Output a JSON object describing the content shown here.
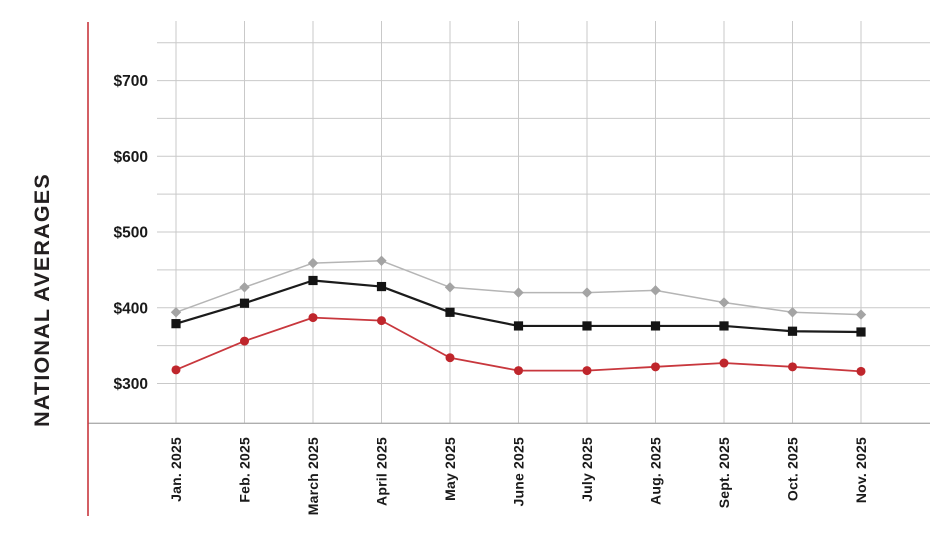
{
  "title": {
    "label": "NATIONAL AVERAGES"
  },
  "colors": {
    "background": "#ffffff",
    "gridline": "#c9c9c9",
    "bottom_axis": "#aeaeae",
    "red_axis": "#c8373d",
    "label_text": "#1a1a1a",
    "title_text": "#231f20"
  },
  "chart_data": {
    "type": "line",
    "title": "NATIONAL AVERAGES",
    "legend": "none",
    "grid": "on",
    "categories": [
      "Jan. 2025",
      "Feb. 2025",
      "March 2025",
      "April 2025",
      "May 2025",
      "June 2025",
      "July 2025",
      "Aug. 2025",
      "Sept. 2025",
      "Oct. 2025",
      "Nov. 2025"
    ],
    "series": [
      {
        "name": "gray-diamond",
        "marker": "diamond",
        "line_color": "#b5b5b5",
        "marker_color": "#a4a4a4",
        "values": [
          394,
          427,
          459,
          462,
          427,
          420,
          420,
          423,
          407,
          394,
          391
        ]
      },
      {
        "name": "black-square",
        "marker": "square",
        "line_color": "#1b1b1b",
        "marker_color": "#141414",
        "values": [
          379,
          406,
          436,
          428,
          394,
          376,
          376,
          376,
          376,
          369,
          368
        ]
      },
      {
        "name": "red-circle",
        "marker": "circle",
        "line_color": "#c8373d",
        "marker_color": "#bf262c",
        "values": [
          318,
          356,
          387,
          383,
          334,
          317,
          317,
          322,
          327,
          322,
          316
        ]
      }
    ],
    "y_axis": {
      "prefix": "$",
      "tick_labels": [
        "$700",
        "$600",
        "$500",
        "$400",
        "$300"
      ],
      "tick_values": [
        700,
        600,
        500,
        400,
        300
      ],
      "grid_min": 300,
      "grid_max": 750,
      "grid_step": 50
    },
    "x_axis": {
      "label_rotation": -90
    }
  }
}
